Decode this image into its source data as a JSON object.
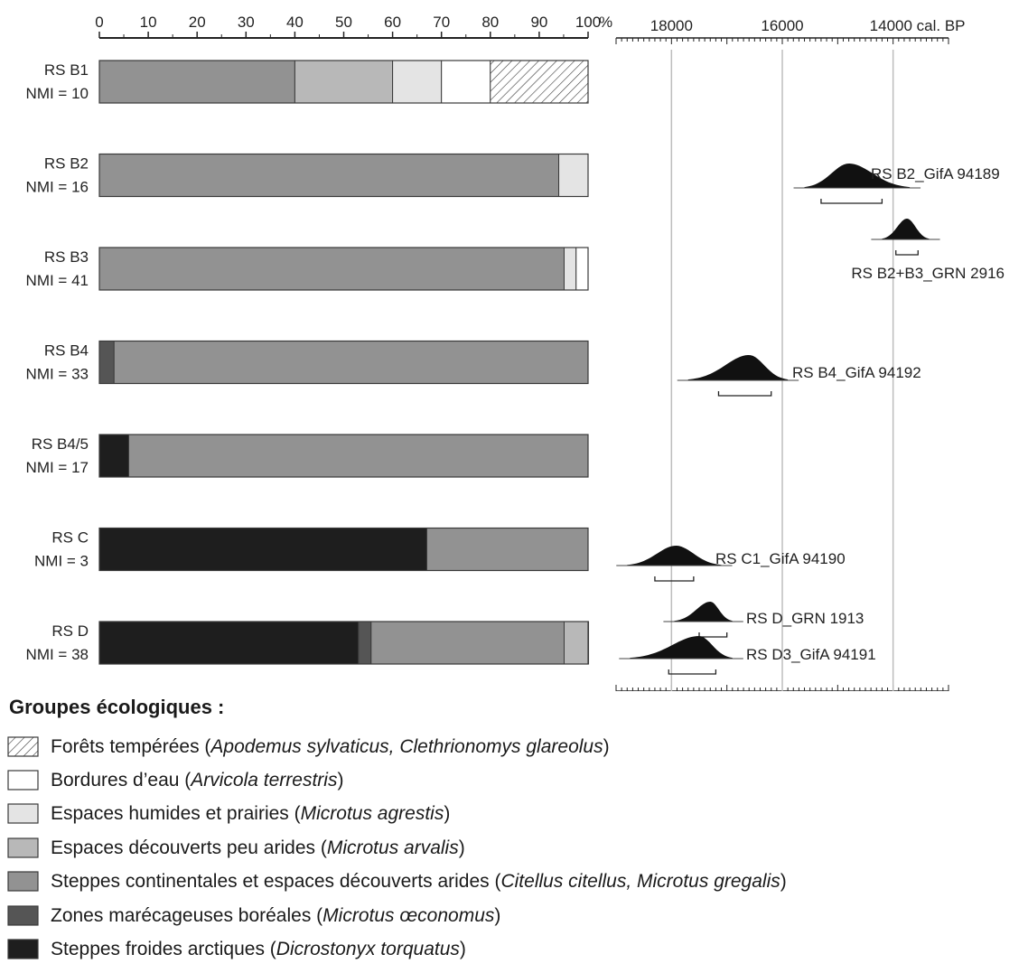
{
  "chart_data": [
    {
      "type": "bar",
      "orientation": "horizontal",
      "stacked": true,
      "x_unit": "%",
      "xlim": [
        0,
        100
      ],
      "x_ticks": [
        0,
        10,
        20,
        30,
        40,
        50,
        60,
        70,
        80,
        90,
        100
      ],
      "x_tick_labels": [
        "0",
        "10",
        "20",
        "30",
        "40",
        "50",
        "60",
        "70",
        "80",
        "90",
        "100"
      ],
      "categories": [
        {
          "name": "RS B1",
          "nmi": "NMI = 10"
        },
        {
          "name": "RS B2",
          "nmi": "NMI = 16"
        },
        {
          "name": "RS B3",
          "nmi": "NMI = 41"
        },
        {
          "name": "RS B4",
          "nmi": "NMI = 33"
        },
        {
          "name": "RS B4/5",
          "nmi": "NMI = 17"
        },
        {
          "name": "RS C",
          "nmi": "NMI = 3"
        },
        {
          "name": "RS D",
          "nmi": "NMI = 38"
        }
      ],
      "series": [
        {
          "name": "Steppes froides arctiques",
          "key": "arctic",
          "values": [
            0,
            0,
            0,
            0,
            6,
            67,
            53
          ]
        },
        {
          "name": "Zones marécageuses boréales",
          "key": "boreal",
          "values": [
            0,
            0,
            0,
            3,
            0,
            0,
            2.6
          ]
        },
        {
          "name": "Steppes continentales et espaces découverts arides",
          "key": "steppe",
          "values": [
            40,
            94,
            95.1,
            97,
            94,
            33,
            39.5
          ]
        },
        {
          "name": "Espaces découverts peu arides",
          "key": "open",
          "values": [
            20,
            0,
            0,
            0,
            0,
            0,
            5
          ]
        },
        {
          "name": "Espaces humides et prairies",
          "key": "humid",
          "values": [
            10,
            6,
            2.45,
            0,
            0,
            0,
            0
          ]
        },
        {
          "name": "Bordures d'eau",
          "key": "water",
          "values": [
            10,
            0,
            2.45,
            0,
            0,
            0,
            0
          ]
        },
        {
          "name": "Forêts tempérées",
          "key": "forest",
          "values": [
            20,
            0,
            0,
            0,
            0,
            0,
            0
          ]
        }
      ]
    },
    {
      "type": "density",
      "x_unit": "cal. BP",
      "x_reversed": true,
      "xlim": [
        19000,
        13000
      ],
      "x_ticks": [
        18000,
        16000,
        14000
      ],
      "x_tick_labels": [
        "18000",
        "16000",
        "14000 cal. BP"
      ],
      "samples": [
        {
          "label": "RS B2_GifA 94189",
          "peak": 14800,
          "range_start": 15300,
          "range_end": 14200,
          "span": [
            15600,
            13700
          ]
        },
        {
          "label": "RS B2+B3_GRN 2916",
          "peak": 13750,
          "range_start": 13950,
          "range_end": 13550,
          "span": [
            14200,
            13350
          ]
        },
        {
          "label": "RS B4_GifA 94192",
          "peak": 16600,
          "range_start": 17150,
          "range_end": 16200,
          "span": [
            17700,
            15900
          ]
        },
        {
          "label": "RS C1_GifA 94190",
          "peak": 17920,
          "range_start": 18300,
          "range_end": 17600,
          "span": [
            18800,
            17100
          ]
        },
        {
          "label": "RS D_GRN 1913",
          "peak": 17300,
          "range_start": 17500,
          "range_end": 17000,
          "span": [
            17950,
            16900
          ]
        },
        {
          "label": "RS D3_GifA 94191",
          "peak": 17500,
          "range_start": 18050,
          "range_end": 17200,
          "span": [
            18750,
            16900
          ]
        }
      ]
    }
  ],
  "colors": {
    "arctic": "#1e1e1e",
    "boreal": "#555555",
    "steppe": "#929292",
    "open": "#b8b8b8",
    "humid": "#e4e4e4",
    "water": "#ffffff",
    "forest": "#ffffff",
    "outline": "#3a3a3a",
    "gridline": "#bdbdbd"
  },
  "axis": {
    "pct_unit": "%",
    "cal_unit": "cal. BP"
  },
  "legend": {
    "title": "Groupes écologiques :",
    "items": [
      {
        "key": "forest",
        "label": "Forêts tempérées (",
        "species": "Apodemus sylvaticus, Clethrionomys glareolus",
        "close": ")"
      },
      {
        "key": "water",
        "label": "Bordures d’eau (",
        "species": "Arvicola terrestris",
        "close": ")"
      },
      {
        "key": "humid",
        "label": "Espaces humides et prairies (",
        "species": "Microtus agrestis",
        "close": ")"
      },
      {
        "key": "open",
        "label": "Espaces découverts peu arides (",
        "species": "Microtus arvalis",
        "close": ")"
      },
      {
        "key": "steppe",
        "label": "Steppes continentales et espaces découverts arides (",
        "species": "Citellus citellus, Microtus gregalis",
        "close": ")"
      },
      {
        "key": "boreal",
        "label": "Zones marécageuses boréales (",
        "species": "Microtus œconomus",
        "close": ")"
      },
      {
        "key": "arctic",
        "label": "Steppes froides arctiques (",
        "species": "Dicrostonyx torquatus",
        "close": ")"
      }
    ]
  }
}
